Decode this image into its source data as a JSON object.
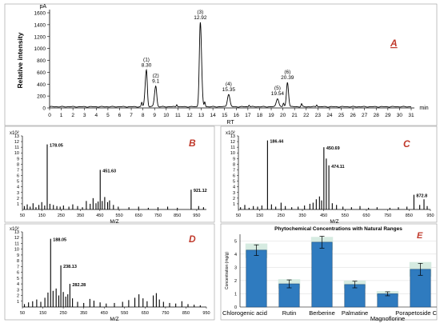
{
  "colors": {
    "panel_label": "#c0392b",
    "line": "#000000",
    "bar": "#2f7bbf",
    "bar_edge": "#1f4e79",
    "band": "#cfe8dc",
    "grid": "#d9d9d9"
  },
  "chart_data": [
    {
      "panel": "A",
      "type": "line",
      "unit_label": "pA",
      "ylabel": "Relative intensity",
      "xlabel": "RT",
      "x_unit": "min",
      "xlim": [
        0,
        31
      ],
      "ylim": [
        0,
        1600
      ],
      "x_ticks": [
        "0",
        "1",
        "2",
        "3",
        "4",
        "5",
        "6",
        "7",
        "8",
        "9",
        "10",
        "11",
        "12",
        "13",
        "14",
        "15",
        "16",
        "17",
        "18",
        "19",
        "20",
        "21",
        "22",
        "23",
        "24",
        "25",
        "26",
        "27",
        "28",
        "29",
        "30",
        "31"
      ],
      "y_ticks": [
        "0",
        "200",
        "400",
        "600",
        "800",
        "1000",
        "1200",
        "1400",
        "1600"
      ],
      "baseline": 20,
      "peaks": [
        {
          "label": "(1)",
          "rt_label": "8.30",
          "rt": 8.3,
          "height": 620,
          "rise": 0.25,
          "fall": 0.18
        },
        {
          "label": "(2)",
          "rt_label": "9.1",
          "rt": 9.1,
          "height": 350,
          "rise": 0.25,
          "fall": 0.2
        },
        {
          "label": "(3)",
          "rt_label": "12.92",
          "rt": 12.92,
          "height": 1420,
          "rise": 0.2,
          "fall": 0.25
        },
        {
          "label": "(4)",
          "rt_label": "15.35",
          "rt": 15.35,
          "height": 210,
          "rise": 0.25,
          "fall": 0.25
        },
        {
          "label": "(5)",
          "rt_label": "19.54",
          "rt": 19.54,
          "height": 140,
          "rise": 0.25,
          "fall": 0.25
        },
        {
          "label": "(6)",
          "rt_label": "20.39",
          "rt": 20.39,
          "height": 410,
          "rise": 0.2,
          "fall": 0.22
        }
      ],
      "minor_peaks": [
        {
          "rt": 7.9,
          "height": 70
        },
        {
          "rt": 10.9,
          "height": 40
        },
        {
          "rt": 13.3,
          "height": 80
        },
        {
          "rt": 17.1,
          "height": 30
        },
        {
          "rt": 20.05,
          "height": 60
        },
        {
          "rt": 21.6,
          "height": 50
        },
        {
          "rt": 22.9,
          "height": 35
        }
      ]
    },
    {
      "panel": "B",
      "type": "bar",
      "multiplier": "x10²",
      "xlabel": "M/Z",
      "xlim": [
        50,
        1000
      ],
      "ylim": [
        0,
        13
      ],
      "x_ticks": [
        "50",
        "150",
        "250",
        "350",
        "450",
        "550",
        "650",
        "750",
        "850",
        "950"
      ],
      "y_ticks": [
        "1",
        "2",
        "3",
        "4",
        "5",
        "6",
        "7",
        "8",
        "9",
        "10",
        "11",
        "12",
        "13"
      ],
      "peak_labels": [
        {
          "mz": 178.05,
          "text": "178.05"
        },
        {
          "mz": 451.63,
          "text": "451.63"
        },
        {
          "mz": 921.12,
          "text": "921.12"
        }
      ],
      "x": [
        60,
        75,
        90,
        105,
        120,
        135,
        150,
        165,
        178.05,
        192,
        210,
        228,
        245,
        262,
        290,
        310,
        335,
        360,
        380,
        400,
        415,
        430,
        441,
        451.63,
        462,
        475,
        490,
        500,
        520,
        545,
        600,
        650,
        700,
        750,
        800,
        850,
        921.12,
        960,
        985
      ],
      "y": [
        0.6,
        0.9,
        0.5,
        1.1,
        0.4,
        0.8,
        1.3,
        0.7,
        11.5,
        1.0,
        0.8,
        0.6,
        0.5,
        0.7,
        0.5,
        0.9,
        0.6,
        0.4,
        1.5,
        1.0,
        2.0,
        1.1,
        1.4,
        7.0,
        1.5,
        2.2,
        1.3,
        1.6,
        0.8,
        0.5,
        0.4,
        0.5,
        0.3,
        0.4,
        0.5,
        0.3,
        3.5,
        0.6,
        0.4
      ]
    },
    {
      "panel": "C",
      "type": "bar",
      "multiplier": "x10²",
      "xlabel": "M/Z",
      "xlim": [
        50,
        950
      ],
      "ylim": [
        0,
        13
      ],
      "x_ticks": [
        "50",
        "150",
        "250",
        "350",
        "450",
        "550",
        "650",
        "750",
        "850",
        "950"
      ],
      "y_ticks": [
        "1",
        "2",
        "3",
        "4",
        "5",
        "6",
        "7",
        "8",
        "9",
        "10",
        "11",
        "12",
        "13"
      ],
      "peak_labels": [
        {
          "mz": 186.44,
          "text": "186.44"
        },
        {
          "mz": 450.69,
          "text": "450.69"
        },
        {
          "mz": 474.11,
          "text": "474.11"
        },
        {
          "mz": 872.8,
          "text": "872.8"
        }
      ],
      "x": [
        60,
        80,
        100,
        120,
        140,
        160,
        186.44,
        205,
        225,
        250,
        270,
        300,
        330,
        360,
        385,
        400,
        415,
        430,
        440,
        450.69,
        462,
        474.11,
        490,
        510,
        540,
        580,
        620,
        660,
        700,
        760,
        800,
        840,
        872.8,
        900,
        920,
        935
      ],
      "y": [
        0.4,
        0.8,
        0.3,
        0.6,
        0.5,
        0.7,
        12.2,
        0.9,
        0.5,
        1.2,
        0.6,
        0.4,
        0.5,
        0.7,
        1.0,
        1.2,
        1.8,
        2.3,
        1.6,
        11.0,
        9.0,
        7.8,
        1.1,
        0.8,
        0.5,
        0.4,
        0.6,
        0.3,
        0.4,
        0.3,
        0.4,
        0.5,
        2.6,
        0.8,
        1.8,
        0.6
      ]
    },
    {
      "panel": "D",
      "type": "bar",
      "multiplier": "x10²",
      "xlabel": "M/Z",
      "xlim": [
        50,
        950
      ],
      "ylim": [
        0,
        13
      ],
      "x_ticks": [
        "50",
        "150",
        "250",
        "350",
        "450",
        "550",
        "650",
        "750",
        "850",
        "950"
      ],
      "y_ticks": [
        "1",
        "2",
        "3",
        "4",
        "5",
        "6",
        "7",
        "8",
        "9",
        "10",
        "11",
        "12",
        "13"
      ],
      "peak_labels": [
        {
          "mz": 188.05,
          "text": "188.05"
        },
        {
          "mz": 238.13,
          "text": "238.13"
        },
        {
          "mz": 282.28,
          "text": "282.28"
        }
      ],
      "x": [
        60,
        80,
        100,
        120,
        140,
        160,
        175,
        188.05,
        200,
        215,
        228,
        238.13,
        250,
        262,
        272,
        282.28,
        295,
        320,
        350,
        380,
        400,
        430,
        460,
        500,
        540,
        570,
        600,
        620,
        640,
        660,
        690,
        705,
        720,
        740,
        770,
        800,
        830,
        860,
        890,
        920
      ],
      "y": [
        0.5,
        0.8,
        1.0,
        1.3,
        0.9,
        1.6,
        2.5,
        11.8,
        2.8,
        3.2,
        2.0,
        7.2,
        2.6,
        1.8,
        2.2,
        4.0,
        1.5,
        0.9,
        0.7,
        1.4,
        1.1,
        0.8,
        0.6,
        0.7,
        0.9,
        1.2,
        1.6,
        2.2,
        1.5,
        1.0,
        2.0,
        2.4,
        1.3,
        0.9,
        0.7,
        0.6,
        1.0,
        0.5,
        0.4,
        0.3
      ]
    },
    {
      "panel": "E",
      "type": "bar",
      "title": "Phytochemical Concentrations with Natural Ranges",
      "ylabel": "Concentration (mg/g)",
      "ylim": [
        0,
        5.5
      ],
      "y_ticks": [
        "0",
        "1",
        "2",
        "3",
        "4",
        "5"
      ],
      "categories": [
        "Chlorogenic acid",
        "Rutin",
        "Berberine",
        "Palmatine",
        "Magnoflorine",
        "Porapetoside C"
      ],
      "values": [
        4.3,
        1.75,
        4.9,
        1.7,
        1.0,
        2.85
      ],
      "errors": [
        0.4,
        0.3,
        0.45,
        0.25,
        0.15,
        0.45
      ],
      "ranges": [
        [
          3.7,
          4.8
        ],
        [
          1.4,
          2.1
        ],
        [
          4.3,
          5.3
        ],
        [
          1.4,
          2.0
        ],
        [
          0.8,
          1.2
        ],
        [
          2.3,
          3.4
        ]
      ]
    }
  ]
}
